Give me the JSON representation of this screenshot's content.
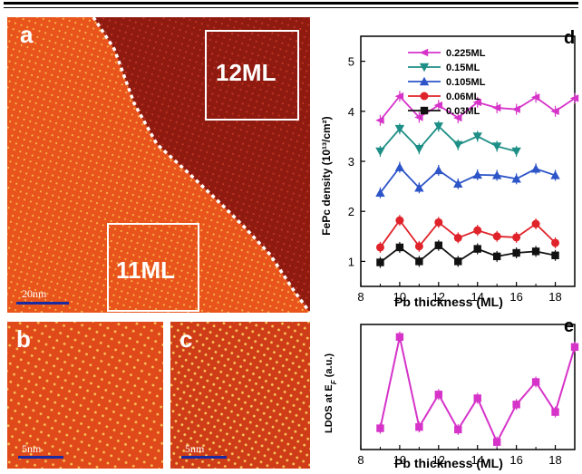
{
  "panels": {
    "a": {
      "label": "a",
      "region_12": "12ML",
      "region_11": "11ML",
      "scale_bar": "20nm"
    },
    "b": {
      "label": "b",
      "scale_bar": "5nm"
    },
    "c": {
      "label": "c",
      "scale_bar": "5nm"
    }
  },
  "colors": {
    "stm_light": "#e8541c",
    "stm_dark": "#8e1a10",
    "pink": "#d633c9",
    "teal": "#1e8f86",
    "blue": "#2d55c8",
    "red": "#e0232a",
    "black": "#111111"
  },
  "chart_data": [
    {
      "type": "line",
      "panel_label": "d",
      "xlabel": "Pb thickness (ML)",
      "ylabel": "FePc density (10¹³/cm²)",
      "xlim": [
        8,
        19
      ],
      "ylim": [
        0.5,
        5.5
      ],
      "xticks": [
        8,
        10,
        12,
        14,
        16,
        18
      ],
      "yticks": [
        1,
        2,
        3,
        4,
        5
      ],
      "legend_position": "top",
      "series": [
        {
          "name": "0.225ML",
          "marker": "diamond-left",
          "x": [
            9,
            10,
            11,
            12,
            13,
            14,
            15,
            16,
            17,
            18,
            19
          ],
          "y": [
            3.82,
            4.3,
            3.88,
            4.12,
            3.87,
            4.18,
            4.07,
            4.04,
            4.28,
            4.0,
            4.26
          ]
        },
        {
          "name": "0.15ML",
          "marker": "triangle-down",
          "x": [
            9,
            10,
            11,
            12,
            13,
            14,
            15,
            16
          ],
          "y": [
            3.2,
            3.65,
            3.25,
            3.7,
            3.33,
            3.5,
            3.3,
            3.2
          ]
        },
        {
          "name": "0.105ML",
          "marker": "triangle-up",
          "x": [
            9,
            10,
            11,
            12,
            13,
            14,
            15,
            16,
            17,
            18
          ],
          "y": [
            2.37,
            2.88,
            2.47,
            2.82,
            2.55,
            2.73,
            2.72,
            2.65,
            2.85,
            2.72
          ]
        },
        {
          "name": "0.06ML",
          "marker": "circle",
          "x": [
            9,
            10,
            11,
            12,
            13,
            14,
            15,
            16,
            17,
            18
          ],
          "y": [
            1.28,
            1.82,
            1.3,
            1.78,
            1.47,
            1.62,
            1.5,
            1.48,
            1.75,
            1.37
          ]
        },
        {
          "name": "0.03ML",
          "marker": "square",
          "x": [
            9,
            10,
            11,
            12,
            13,
            14,
            15,
            16,
            17,
            18
          ],
          "y": [
            0.98,
            1.28,
            1.0,
            1.32,
            1.0,
            1.25,
            1.1,
            1.17,
            1.2,
            1.12
          ]
        }
      ]
    },
    {
      "type": "line",
      "panel_label": "e",
      "xlabel": "Pb thickness (ML)",
      "ylabel_prefix": "LDOS at E",
      "ylabel_sub": "F",
      "ylabel_suffix": " (a.u.)",
      "xlim": [
        8,
        19
      ],
      "ylim": [
        0,
        1
      ],
      "xticks": [
        8,
        10,
        12,
        14,
        16,
        18
      ],
      "series": [
        {
          "marker": "square",
          "x": [
            9,
            10,
            11,
            12,
            13,
            14,
            15,
            16,
            17,
            18,
            19
          ],
          "y": [
            0.17,
            0.9,
            0.18,
            0.44,
            0.16,
            0.41,
            0.06,
            0.36,
            0.54,
            0.3,
            0.82
          ]
        }
      ]
    }
  ]
}
